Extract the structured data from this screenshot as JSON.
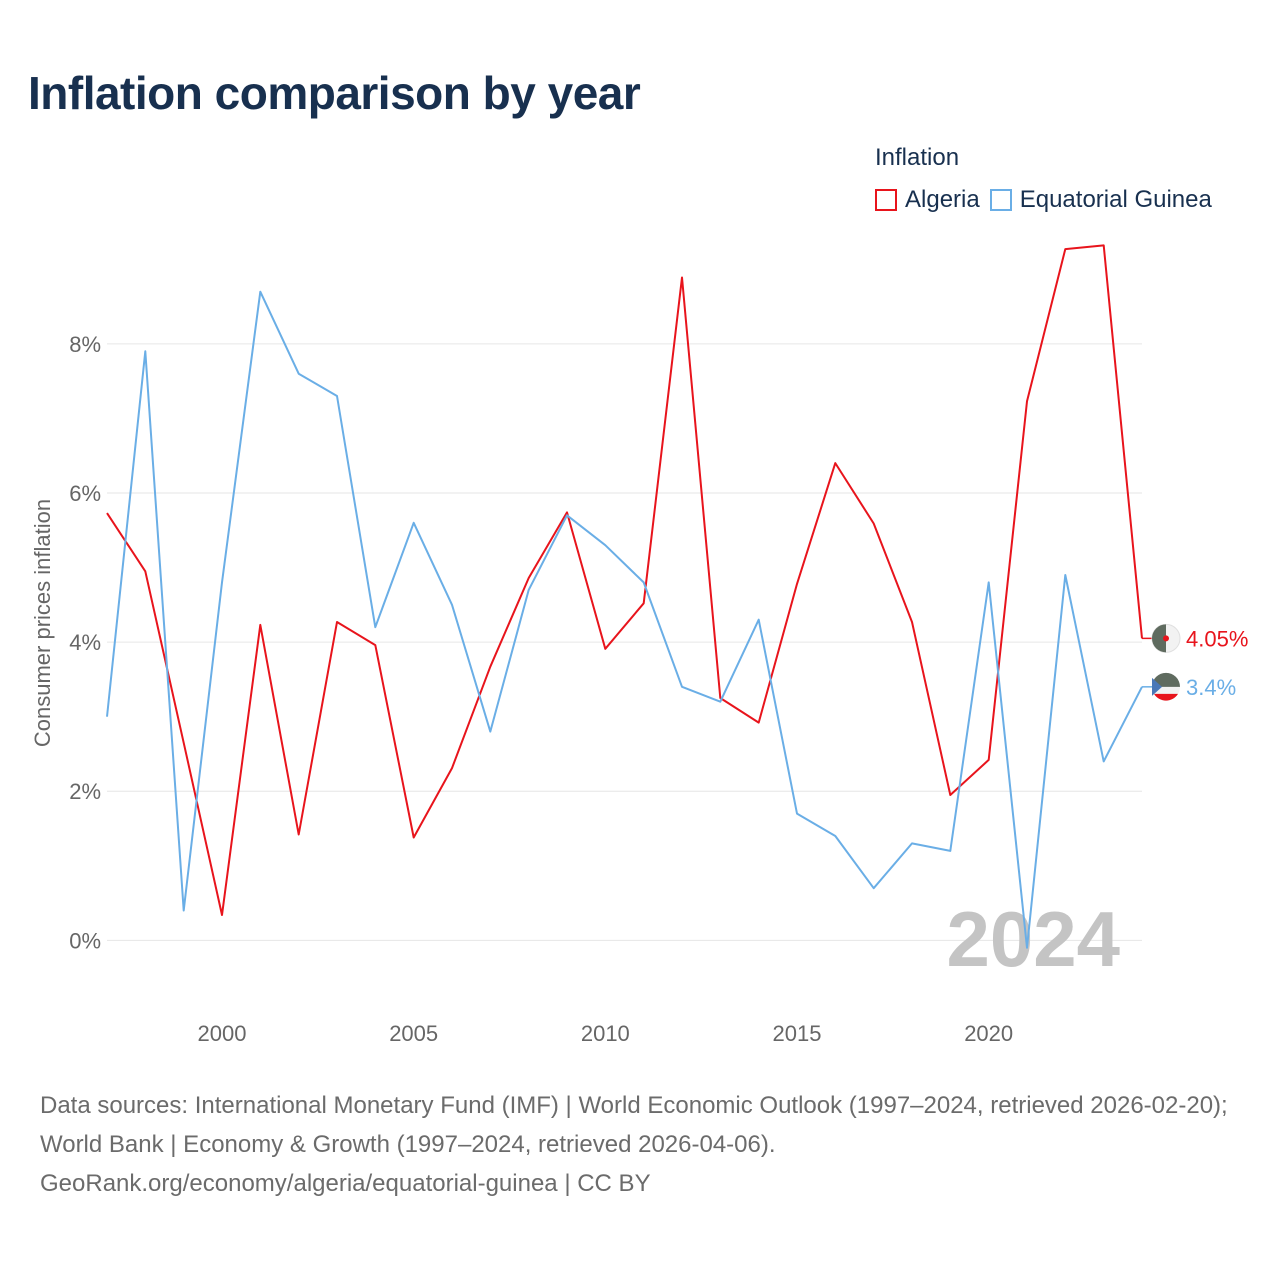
{
  "title": "Inflation comparison by year",
  "legend": {
    "title": "Inflation",
    "items": [
      {
        "label": "Algeria",
        "color": "#e8141c"
      },
      {
        "label": "Equatorial Guinea",
        "color": "#6aaee6"
      }
    ]
  },
  "year_watermark": "2024",
  "footer": {
    "line1": "Data sources: International Monetary Fund (IMF) | World Economic Outlook (1997–2024, retrieved 2026-02-20); World Bank | Economy & Growth (1997–2024, retrieved 2026-04-06).",
    "line2": "GeoRank.org/economy/algeria/equatorial-guinea | CC BY"
  },
  "chart_data": {
    "type": "line",
    "title": "Inflation comparison by year",
    "xlabel": "",
    "ylabel": "Consumer prices inflation",
    "xlim": [
      1997,
      2024
    ],
    "ylim": [
      -0.8,
      9.5
    ],
    "x_ticks": [
      2000,
      2005,
      2010,
      2015,
      2020
    ],
    "x_tick_labels": [
      "2000",
      "2005",
      "2010",
      "2015",
      "2020"
    ],
    "y_ticks": [
      0,
      2,
      4,
      6,
      8
    ],
    "y_tick_labels": [
      "0%",
      "2%",
      "4%",
      "6%",
      "8%"
    ],
    "grid": true,
    "x": [
      1997,
      1998,
      1999,
      2000,
      2001,
      2002,
      2003,
      2004,
      2005,
      2006,
      2007,
      2008,
      2009,
      2010,
      2011,
      2012,
      2013,
      2014,
      2015,
      2016,
      2017,
      2018,
      2019,
      2020,
      2021,
      2022,
      2023,
      2024
    ],
    "series": [
      {
        "name": "Algeria",
        "color": "#e8141c",
        "end_label": "4.05%",
        "values": [
          5.73,
          4.95,
          2.65,
          0.34,
          4.23,
          1.42,
          4.27,
          3.96,
          1.38,
          2.31,
          3.67,
          4.86,
          5.74,
          3.91,
          4.52,
          8.89,
          3.25,
          2.92,
          4.78,
          6.4,
          5.59,
          4.27,
          1.95,
          2.42,
          7.23,
          9.27,
          9.32,
          4.05
        ]
      },
      {
        "name": "Equatorial Guinea",
        "color": "#6aaee6",
        "end_label": "3.4%",
        "values": [
          3.0,
          7.9,
          0.4,
          4.8,
          8.7,
          7.6,
          7.3,
          4.2,
          5.6,
          4.5,
          2.8,
          4.7,
          5.7,
          5.3,
          4.8,
          3.4,
          3.2,
          4.3,
          1.7,
          1.4,
          0.7,
          1.3,
          1.2,
          4.8,
          -0.1,
          4.9,
          2.4,
          3.4
        ]
      }
    ]
  }
}
